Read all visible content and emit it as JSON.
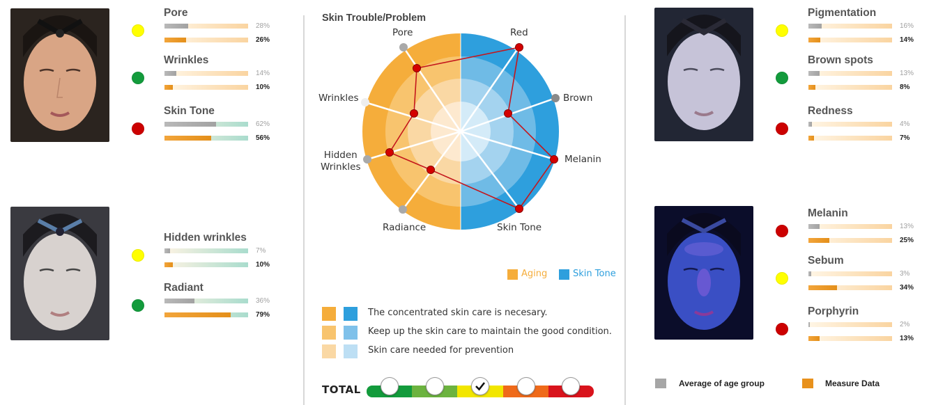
{
  "colors": {
    "yellow": "#ffff00",
    "green": "#139b3c",
    "red": "#cc0000",
    "aging": "#f5ad3b",
    "skin_tone": "#2e9fdd",
    "average_gray": "#a6a6a6",
    "measure_orange": "#e8911c"
  },
  "left_panel": {
    "groups": [
      {
        "photo": "face-photo-normal",
        "metrics": [
          {
            "name": "Pore",
            "status": "yellow",
            "average": "28%",
            "measure": "26%",
            "avg_value": 0.28,
            "measure_value": 0.26
          },
          {
            "name": "Wrinkles",
            "status": "green",
            "average": "14%",
            "measure": "10%",
            "avg_value": 0.14,
            "measure_value": 0.1
          },
          {
            "name": "Skin Tone",
            "status": "red",
            "average": "62%",
            "measure": "56%",
            "avg_value": 0.62,
            "measure_value": 0.56
          }
        ]
      },
      {
        "photo": "face-photo-light",
        "metrics": [
          {
            "name": "Hidden wrinkles",
            "status": "yellow",
            "average": "7%",
            "measure": "10%",
            "avg_value": 0.07,
            "measure_value": 0.1
          },
          {
            "name": "Radiant",
            "status": "green",
            "average": "36%",
            "measure": "79%",
            "avg_value": 0.36,
            "measure_value": 0.79
          }
        ]
      }
    ]
  },
  "center_panel": {
    "title": "Skin Trouble/Problem",
    "radar_labels": {
      "pore": "Pore",
      "wrinkles": "Wrinkles",
      "hidden_wrinkles": "Hidden\nWrinkles",
      "radiance": "Radiance",
      "red": "Red",
      "brown": "Brown",
      "melanin": "Melanin",
      "skin_tone": "Skin Tone"
    },
    "legend": {
      "aging": "Aging",
      "skin_tone": "Skin Tone"
    },
    "recommendations": [
      "The concentrated skin care is necesary.",
      "Keep up the skin care to maintain the good condition.",
      "Skin care needed for prevention"
    ],
    "total": {
      "label": "TOTAL",
      "scale_colors": [
        "#139b3c",
        "#6cb33f",
        "#f2e600",
        "#ef6a1a",
        "#d9131c"
      ],
      "checked_index": 2
    }
  },
  "right_panel": {
    "groups": [
      {
        "photo": "face-photo-polarized",
        "metrics": [
          {
            "name": "Pigmentation",
            "status": "yellow",
            "average": "16%",
            "measure": "14%",
            "avg_value": 0.16,
            "measure_value": 0.14
          },
          {
            "name": "Brown spots",
            "status": "green",
            "average": "13%",
            "measure": "8%",
            "avg_value": 0.13,
            "measure_value": 0.08
          },
          {
            "name": "Redness",
            "status": "red",
            "average": "4%",
            "measure": "7%",
            "avg_value": 0.04,
            "measure_value": 0.07
          }
        ]
      },
      {
        "photo": "face-photo-uv",
        "metrics": [
          {
            "name": "Melanin",
            "status": "red",
            "average": "13%",
            "measure": "25%",
            "avg_value": 0.13,
            "measure_value": 0.25
          },
          {
            "name": "Sebum",
            "status": "yellow",
            "average": "3%",
            "measure": "34%",
            "avg_value": 0.03,
            "measure_value": 0.34
          },
          {
            "name": "Porphyrin",
            "status": "red",
            "average": "2%",
            "measure": "13%",
            "avg_value": 0.02,
            "measure_value": 0.13
          }
        ]
      }
    ],
    "legend": {
      "average": "Average of age group",
      "measure": "Measure Data"
    }
  }
}
